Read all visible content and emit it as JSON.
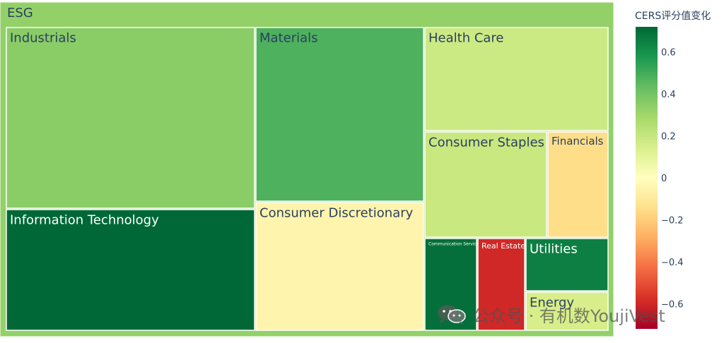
{
  "chart_data": {
    "type": "treemap",
    "root": "ESG",
    "colorbar": {
      "title": "CERS评分值变化",
      "ticks": [
        "0.6",
        "0.4",
        "0.2",
        "0",
        "−0.2",
        "−0.4",
        "−0.6"
      ],
      "tick_values": [
        0.6,
        0.4,
        0.2,
        0,
        -0.2,
        -0.4,
        -0.6
      ],
      "range": [
        -0.72,
        0.72
      ],
      "colorscale": [
        "#a50026",
        "#d73027",
        "#f46d43",
        "#fdae61",
        "#fee08b",
        "#ffffbf",
        "#d9ef8b",
        "#a6d96a",
        "#66bd63",
        "#1a9850",
        "#006837"
      ]
    },
    "root_value": 0.33,
    "sectors": [
      {
        "name": "Industrials",
        "value": 0.35
      },
      {
        "name": "Information Technology",
        "value": 0.72
      },
      {
        "name": "Materials",
        "value": 0.48
      },
      {
        "name": "Consumer Discretionary",
        "value": -0.05
      },
      {
        "name": "Health Care",
        "value": 0.18
      },
      {
        "name": "Consumer Staples",
        "value": 0.19
      },
      {
        "name": "Financials",
        "value": -0.15
      },
      {
        "name": "Communication Services",
        "value": 0.7
      },
      {
        "name": "Real Estate",
        "value": -0.6
      },
      {
        "name": "Utilities",
        "value": 0.65
      },
      {
        "name": "Energy",
        "value": 0.15
      }
    ]
  },
  "watermark": {
    "text": "公众号 · 有机数YoujiVest",
    "icon": "wechat-icon"
  }
}
